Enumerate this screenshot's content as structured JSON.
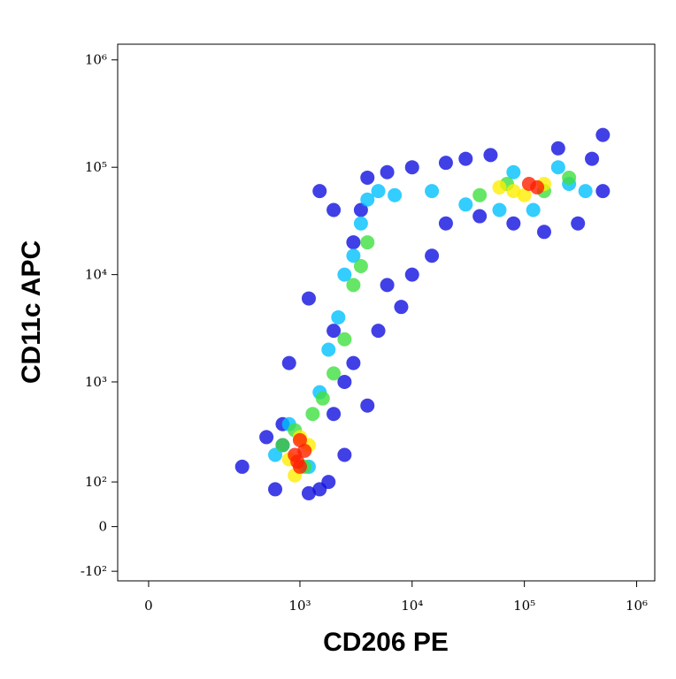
{
  "chart_data": {
    "type": "scatter",
    "scale": "asinh",
    "x_label": "CD206 PE",
    "y_label": "CD11c APC",
    "xlim": [
      -61,
      1450000
    ],
    "ylim": [
      -130,
      1400000
    ],
    "xticks": [
      {
        "value": 0,
        "label": "0"
      },
      {
        "value": 1000,
        "label": "10³"
      },
      {
        "value": 10000,
        "label": "10⁴"
      },
      {
        "value": 100000,
        "label": "10⁵"
      },
      {
        "value": 1000000,
        "label": "10⁶"
      }
    ],
    "yticks": [
      {
        "value": -100,
        "label": "-10²"
      },
      {
        "value": 0,
        "label": "0"
      },
      {
        "value": 100,
        "label": "10²"
      },
      {
        "value": 1000,
        "label": "10³"
      },
      {
        "value": 10000,
        "label": "10⁴"
      },
      {
        "value": 100000,
        "label": "10⁵"
      },
      {
        "value": 1000000,
        "label": "10⁶"
      }
    ],
    "series": [
      {
        "color": "#1010e0",
        "x": [
          300,
          500,
          600,
          700,
          1500,
          2000,
          2500,
          2000,
          1200,
          800,
          3000,
          5000,
          8000,
          3000,
          2000,
          1500,
          4000,
          6000,
          10000,
          20000,
          30000,
          50000,
          200000,
          400000,
          500000,
          300000,
          150000,
          80000,
          40000,
          20000,
          15000,
          10000,
          6000,
          4000,
          2500,
          1800,
          1200,
          700,
          3500,
          500000
        ],
        "y": [
          150,
          300,
          80,
          400,
          80,
          500,
          1000,
          3000,
          6000,
          1500,
          1500,
          3000,
          5000,
          20000,
          40000,
          60000,
          80000,
          90000,
          100000,
          110000,
          120000,
          130000,
          150000,
          120000,
          60000,
          30000,
          25000,
          30000,
          35000,
          30000,
          15000,
          10000,
          8000,
          600,
          200,
          100,
          70,
          250,
          40000,
          200000
        ]
      },
      {
        "color": "#00c0ff",
        "x": [
          600,
          800,
          1200,
          1500,
          1800,
          2200,
          2500,
          3000,
          3500,
          4000,
          5000,
          7000,
          15000,
          30000,
          60000,
          120000,
          250000,
          350000,
          200000,
          80000
        ],
        "y": [
          200,
          400,
          150,
          800,
          2000,
          4000,
          10000,
          15000,
          30000,
          50000,
          60000,
          55000,
          60000,
          45000,
          40000,
          40000,
          70000,
          60000,
          100000,
          90000
        ]
      },
      {
        "color": "#40e040",
        "x": [
          700,
          900,
          1100,
          1300,
          2000,
          2500,
          3000,
          4000,
          40000,
          70000,
          150000,
          250000,
          1600,
          3500
        ],
        "y": [
          250,
          350,
          150,
          500,
          1200,
          2500,
          8000,
          20000,
          55000,
          70000,
          60000,
          80000,
          700,
          12000
        ]
      },
      {
        "color": "#ffee00",
        "x": [
          800,
          1000,
          1200,
          900,
          60000,
          100000,
          150000,
          80000
        ],
        "y": [
          180,
          300,
          250,
          120,
          65000,
          55000,
          70000,
          60000
        ]
      },
      {
        "color": "#ff2000",
        "x": [
          900,
          1000,
          1100,
          1000,
          950,
          110000,
          130000
        ],
        "y": [
          200,
          150,
          220,
          280,
          170,
          70000,
          65000
        ]
      }
    ]
  }
}
